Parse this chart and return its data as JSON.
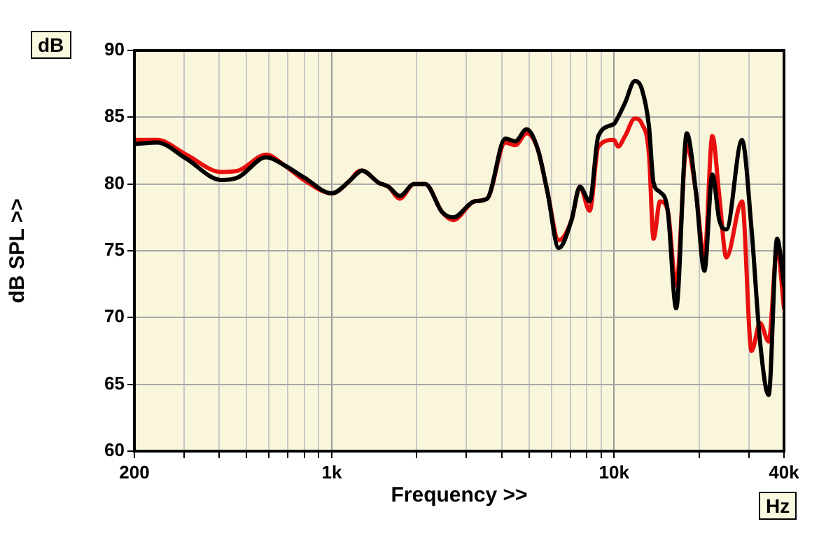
{
  "chart_data": {
    "type": "line",
    "xlabel": "Frequency >>",
    "ylabel": "dB SPL >>",
    "annotations": [
      "dB",
      "Hz"
    ],
    "log": "x",
    "grid": true,
    "marker": "none",
    "line_style": "solid",
    "xlim": [
      200,
      40000
    ],
    "ylim": [
      60,
      90
    ],
    "xticks": [
      200,
      {
        "value": 300,
        "label": null
      },
      {
        "value": 400,
        "label": null
      },
      {
        "value": 500,
        "label": null
      },
      {
        "value": 600,
        "label": null
      },
      {
        "value": 700,
        "label": null
      },
      {
        "value": 800,
        "label": null
      },
      {
        "value": 900,
        "label": null
      },
      {
        "value": 1000,
        "label": "1k"
      },
      {
        "value": 2000,
        "label": null
      },
      {
        "value": 3000,
        "label": null
      },
      {
        "value": 4000,
        "label": null
      },
      {
        "value": 5000,
        "label": null
      },
      {
        "value": 6000,
        "label": null
      },
      {
        "value": 7000,
        "label": null
      },
      {
        "value": 8000,
        "label": null
      },
      {
        "value": 9000,
        "label": null
      },
      {
        "value": 10000,
        "label": "10k"
      },
      {
        "value": 20000,
        "label": null
      },
      {
        "value": 30000,
        "label": null
      },
      {
        "value": 40000,
        "label": "40k"
      }
    ],
    "yticks": [
      60,
      65,
      70,
      75,
      80,
      85,
      90
    ],
    "series": [
      {
        "color": "#e8100e",
        "x": [
          200,
          241,
          305,
          406,
          466,
          586,
          680,
          797,
          1000,
          1165,
          1233,
          1278,
          1466,
          1588,
          1742,
          1955,
          2144,
          2460,
          2700,
          3200,
          3550,
          4120,
          4470,
          4900,
          5370,
          5810,
          6370,
          7070,
          7570,
          8200,
          8800,
          10000,
          10330,
          10950,
          11840,
          12550,
          13300,
          13800,
          14550,
          15500,
          16600,
          18100,
          19500,
          20900,
          22300,
          23600,
          25000,
          28400,
          30700,
          32900,
          35300,
          37800,
          40000
        ],
        "values": [
          83.3,
          83.3,
          82.2,
          80.9,
          81.0,
          82.2,
          81.4,
          80.3,
          79.3,
          80.3,
          80.9,
          81.0,
          80.1,
          79.8,
          78.9,
          80.0,
          80.0,
          77.9,
          77.3,
          78.7,
          78.9,
          83.1,
          82.9,
          83.8,
          82.6,
          79.4,
          75.8,
          77.3,
          79.8,
          78.0,
          82.8,
          83.3,
          82.8,
          83.6,
          84.9,
          84.5,
          82.2,
          75.9,
          78.7,
          78.0,
          72.4,
          82.9,
          79.4,
          74.5,
          83.6,
          79.1,
          74.5,
          78.7,
          67.5,
          69.6,
          68.2,
          75.2,
          70.7
        ]
      },
      {
        "color": "#000000",
        "x": [
          200,
          241,
          305,
          406,
          466,
          586,
          680,
          797,
          1000,
          1165,
          1233,
          1278,
          1466,
          1588,
          1742,
          1955,
          2144,
          2460,
          2700,
          3200,
          3550,
          4120,
          4470,
          4900,
          5370,
          5810,
          6370,
          7070,
          7570,
          8200,
          8800,
          10000,
          10330,
          10950,
          11840,
          12550,
          13300,
          13800,
          14550,
          15500,
          16600,
          18100,
          19500,
          20900,
          22300,
          23600,
          25000,
          28400,
          30700,
          32900,
          35300,
          37800,
          40000
        ],
        "values": [
          83.0,
          83.1,
          81.9,
          80.3,
          80.5,
          82.0,
          81.4,
          80.5,
          79.3,
          80.3,
          80.8,
          81.0,
          80.1,
          79.8,
          79.1,
          80.0,
          80.0,
          77.9,
          77.5,
          78.7,
          78.9,
          83.4,
          83.2,
          84.1,
          82.6,
          79.4,
          75.2,
          77.3,
          79.8,
          78.7,
          83.6,
          84.5,
          85.0,
          86.1,
          87.7,
          87.1,
          84.3,
          80.1,
          79.4,
          78.0,
          70.7,
          83.8,
          79.4,
          73.5,
          80.7,
          77.3,
          76.6,
          83.3,
          76.6,
          68.2,
          64.2,
          75.9,
          72.4
        ]
      }
    ]
  }
}
